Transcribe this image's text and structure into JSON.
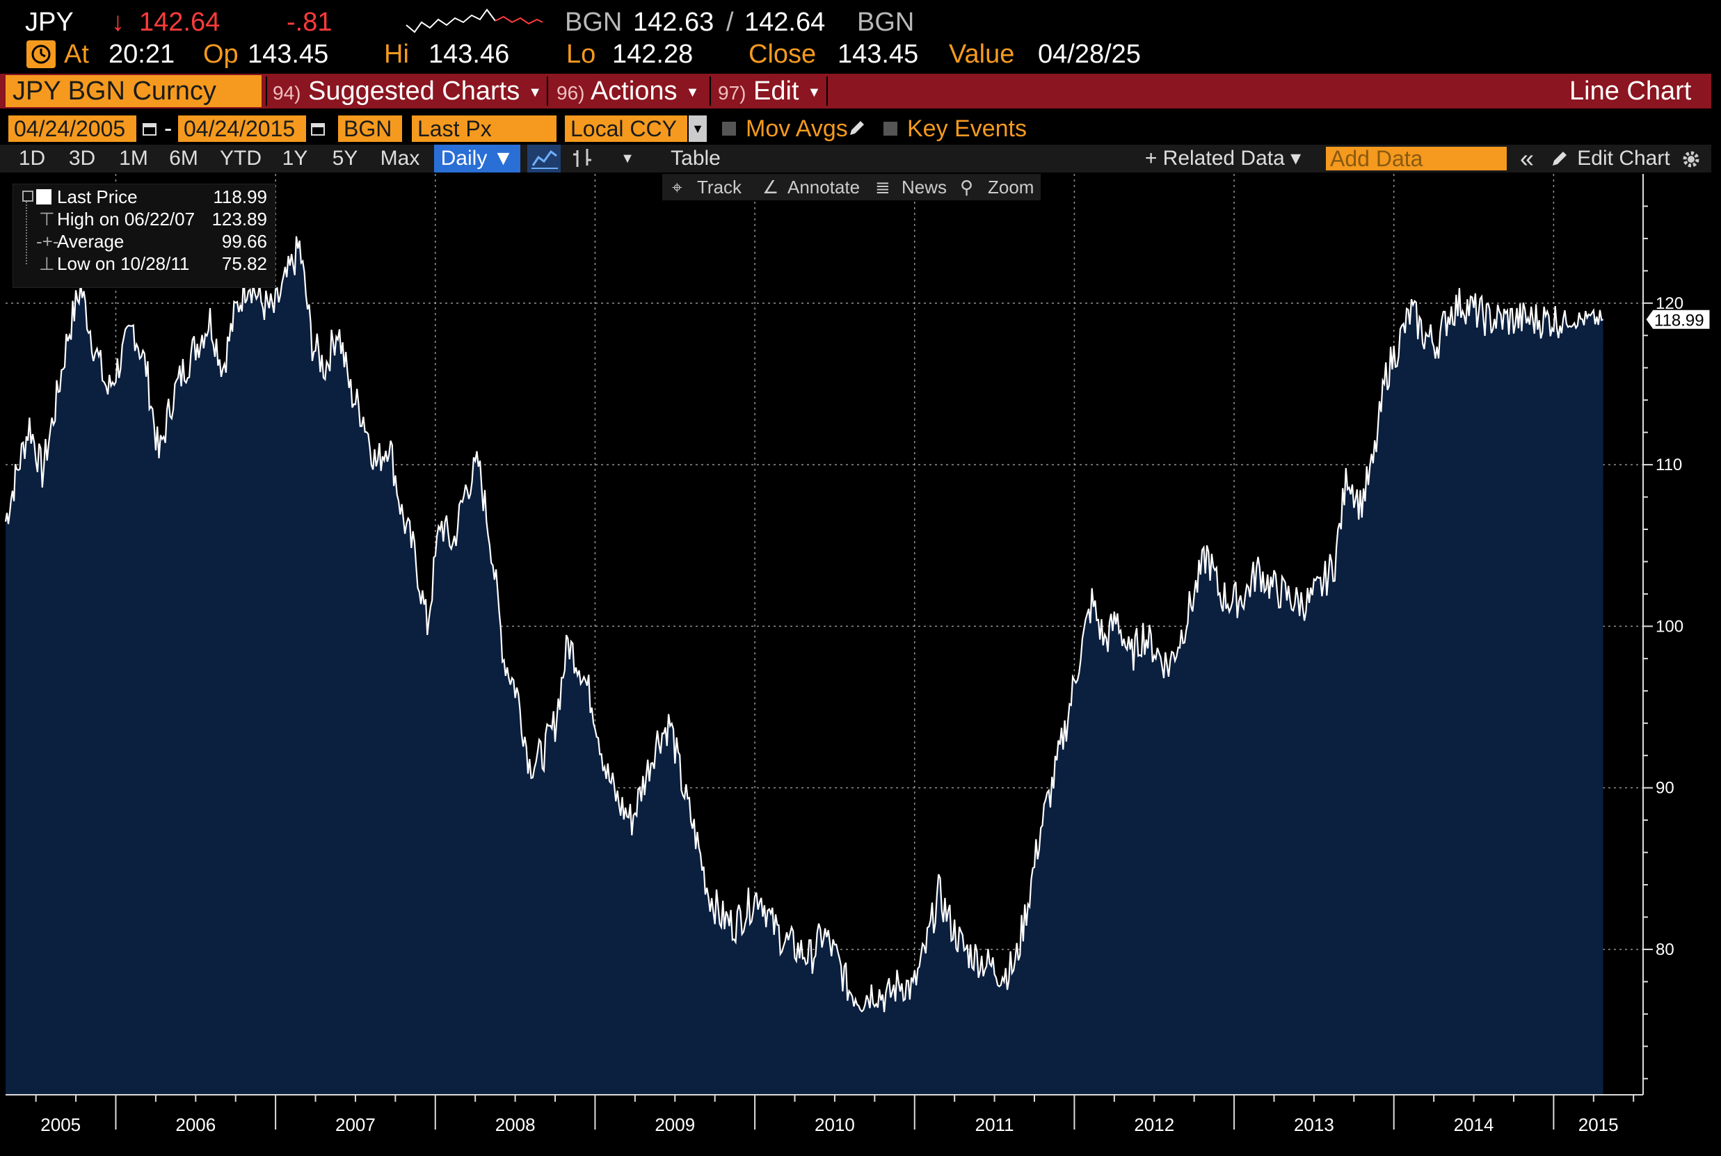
{
  "header": {
    "ticker": "JPY",
    "arrow": "↓",
    "price": "142.64",
    "change": "-.81",
    "source": "BGN",
    "bid_ask": "142.63",
    "slash": "/",
    "ask": "142.64",
    "source2": "BGN",
    "at_label": "At",
    "time": "20:21",
    "op_label": "Op",
    "op": "143.45",
    "hi_label": "Hi",
    "hi": "143.46",
    "lo_label": "Lo",
    "lo": "142.28",
    "close_label": "Close",
    "close": "143.45",
    "value_label": "Value",
    "value_date": "04/28/25"
  },
  "menubar": {
    "security": "JPY BGN Curncy",
    "suggested_num": "94)",
    "suggested": "Suggested Charts",
    "actions_num": "96)",
    "actions": "Actions",
    "edit_num": "97)",
    "edit": "Edit",
    "chart_type": "Line Chart"
  },
  "options": {
    "start_date": "04/24/2005",
    "dash": "-",
    "end_date": "04/24/2015",
    "source": "BGN",
    "field": "Last Px",
    "currency": "Local CCY",
    "mov_avgs": "Mov Avgs",
    "key_events": "Key Events"
  },
  "toolbar": {
    "periods": [
      "1D",
      "3D",
      "1M",
      "6M",
      "YTD",
      "1Y",
      "5Y",
      "Max"
    ],
    "frequency": "Daily ▼",
    "table": "Table",
    "related_data": "+ Related Data ▾",
    "add_data_placeholder": "Add Data",
    "collapse": "«",
    "edit_chart": "Edit Chart"
  },
  "subtoolbar": {
    "track": "Track",
    "annotate": "Annotate",
    "news": "News",
    "zoom": "Zoom"
  },
  "legend": {
    "last_label": "Last Price",
    "last_value": "118.99",
    "high_label": "High on 06/22/07",
    "high_value": "123.89",
    "avg_label": "Average",
    "avg_value": "99.66",
    "low_label": "Low on 10/28/11",
    "low_value": "75.82"
  },
  "colors": {
    "accent": "#f59a1e",
    "menubar": "#8b1520",
    "area_fill": "#0b1f3f",
    "line": "#ffffff",
    "down": "#ff3b3b"
  },
  "chart_data": {
    "type": "area",
    "series_name": "Last Price",
    "last_value_label": "118.99",
    "ylim": [
      71,
      128
    ],
    "yticks": [
      "80",
      "90",
      "100",
      "110",
      "120"
    ],
    "xlim": [
      2005.31,
      2015.56
    ],
    "x_tick_labels": [
      "2005",
      "2006",
      "2007",
      "2008",
      "2009",
      "2010",
      "2011",
      "2012",
      "2013",
      "2014",
      "2015"
    ],
    "grid": true,
    "x": [
      2005.31,
      2005.38,
      2005.46,
      2005.54,
      2005.62,
      2005.7,
      2005.78,
      2005.86,
      2005.95,
      2006.03,
      2006.11,
      2006.19,
      2006.27,
      2006.35,
      2006.43,
      2006.51,
      2006.59,
      2006.67,
      2006.75,
      2006.83,
      2006.91,
      2006.99,
      2007.07,
      2007.15,
      2007.23,
      2007.31,
      2007.39,
      2007.47,
      2007.55,
      2007.63,
      2007.71,
      2007.79,
      2007.87,
      2007.95,
      2008.03,
      2008.11,
      2008.19,
      2008.27,
      2008.35,
      2008.43,
      2008.51,
      2008.59,
      2008.67,
      2008.75,
      2008.83,
      2008.91,
      2008.99,
      2009.07,
      2009.15,
      2009.23,
      2009.31,
      2009.39,
      2009.47,
      2009.55,
      2009.63,
      2009.71,
      2009.79,
      2009.87,
      2009.95,
      2010.03,
      2010.11,
      2010.19,
      2010.27,
      2010.35,
      2010.43,
      2010.51,
      2010.59,
      2010.67,
      2010.75,
      2010.83,
      2010.91,
      2010.99,
      2011.07,
      2011.15,
      2011.23,
      2011.31,
      2011.39,
      2011.47,
      2011.55,
      2011.63,
      2011.71,
      2011.79,
      2011.87,
      2011.95,
      2012.03,
      2012.11,
      2012.19,
      2012.27,
      2012.35,
      2012.43,
      2012.51,
      2012.59,
      2012.67,
      2012.75,
      2012.83,
      2012.91,
      2012.99,
      2013.07,
      2013.15,
      2013.23,
      2013.31,
      2013.39,
      2013.47,
      2013.55,
      2013.63,
      2013.71,
      2013.79,
      2013.87,
      2013.95,
      2014.03,
      2014.11,
      2014.19,
      2014.27,
      2014.35,
      2014.43,
      2014.51,
      2014.59,
      2014.67,
      2014.75,
      2014.83,
      2014.91,
      2014.99,
      2015.07,
      2015.15,
      2015.23,
      2015.31
    ],
    "values": [
      106.5,
      109.5,
      112.5,
      109.5,
      113.5,
      118.0,
      121.0,
      117.5,
      114.5,
      116.5,
      118.5,
      116.0,
      110.5,
      114.0,
      116.0,
      117.5,
      119.0,
      116.0,
      119.5,
      121.5,
      120.0,
      119.5,
      121.5,
      123.5,
      117.5,
      116.0,
      118.5,
      114.5,
      113.0,
      110.0,
      111.5,
      107.0,
      104.5,
      100.0,
      106.5,
      105.0,
      108.5,
      110.0,
      105.0,
      98.0,
      96.0,
      91.5,
      92.0,
      94.0,
      99.0,
      97.5,
      95.0,
      91.0,
      89.0,
      88.0,
      90.5,
      93.0,
      94.0,
      90.0,
      87.0,
      83.5,
      82.0,
      81.5,
      82.5,
      83.5,
      81.5,
      80.5,
      80.0,
      79.5,
      81.0,
      79.5,
      77.5,
      77.0,
      77.5,
      77.0,
      78.0,
      77.5,
      80.0,
      83.5,
      81.5,
      80.0,
      79.5,
      79.0,
      78.5,
      79.0,
      83.0,
      87.5,
      90.5,
      94.0,
      98.0,
      101.5,
      99.0,
      100.5,
      98.0,
      99.5,
      98.5,
      97.5,
      99.5,
      102.0,
      104.5,
      102.0,
      101.5,
      102.0,
      103.5,
      102.5,
      102.0,
      101.5,
      101.5,
      102.5,
      104.0,
      109.5,
      107.5,
      110.0,
      115.5,
      117.5,
      119.5,
      118.0,
      117.5,
      119.5,
      120.0,
      119.5,
      119.0,
      118.99,
      118.99,
      118.99,
      118.99,
      118.99,
      118.99,
      118.99,
      118.99,
      118.99
    ]
  }
}
